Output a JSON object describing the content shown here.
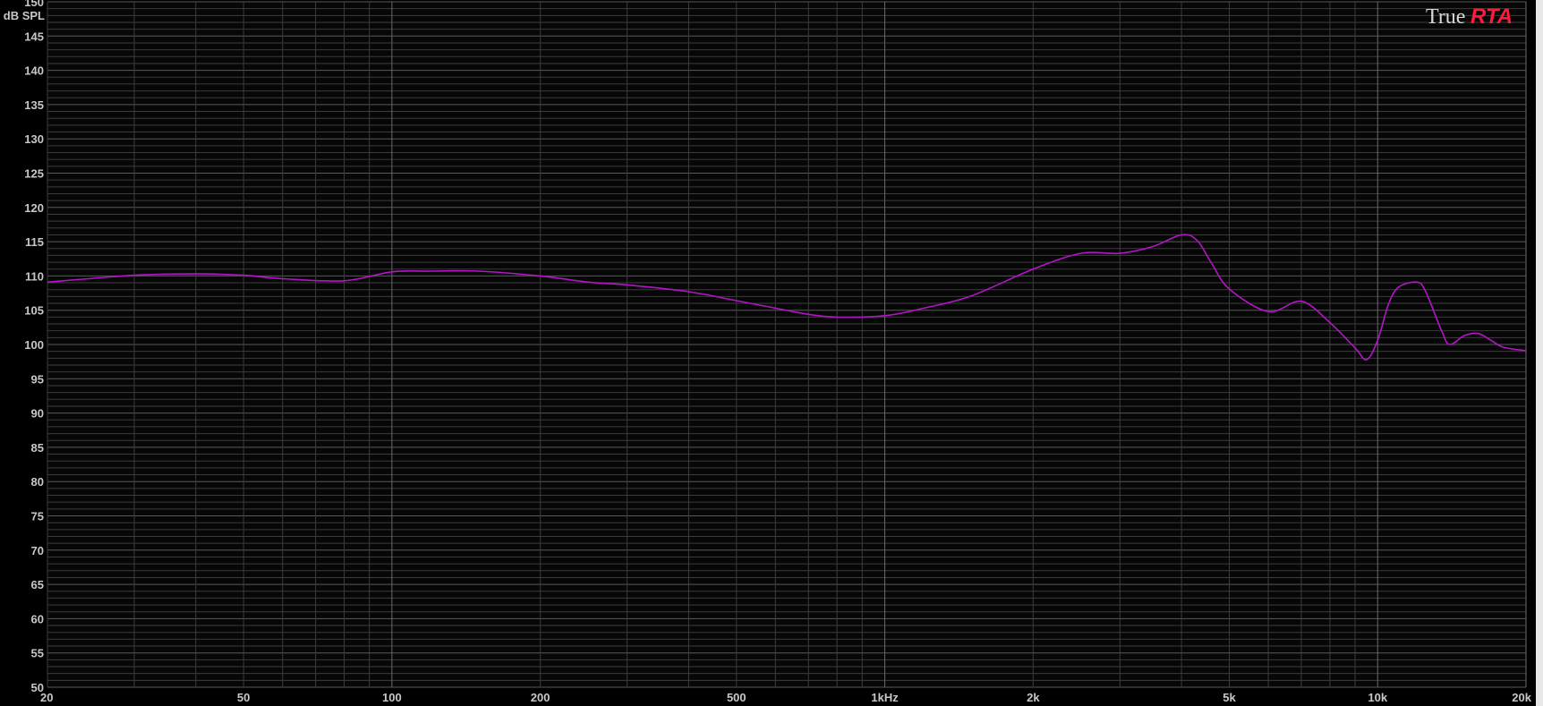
{
  "chart_data": {
    "type": "line",
    "ylabel": "dB SPL",
    "xscale": "log",
    "xlim": [
      20,
      20000
    ],
    "ylim": [
      50,
      150
    ],
    "grid": true,
    "x_ticks": [
      {
        "value": 20,
        "label": "20"
      },
      {
        "value": 50,
        "label": "50"
      },
      {
        "value": 100,
        "label": "100"
      },
      {
        "value": 200,
        "label": "200"
      },
      {
        "value": 500,
        "label": "500"
      },
      {
        "value": 1000,
        "label": "1kHz"
      },
      {
        "value": 2000,
        "label": "2k"
      },
      {
        "value": 5000,
        "label": "5k"
      },
      {
        "value": 10000,
        "label": "10k"
      },
      {
        "value": 20000,
        "label": "20k"
      }
    ],
    "y_ticks": [
      150,
      145,
      140,
      135,
      130,
      125,
      120,
      115,
      110,
      105,
      100,
      95,
      90,
      85,
      80,
      75,
      70,
      65,
      60,
      55,
      50
    ],
    "series": [
      {
        "color": "#b414c8",
        "x": [
          20,
          30,
          40,
          50,
          60,
          80,
          100,
          120,
          150,
          200,
          250,
          300,
          400,
          500,
          600,
          700,
          800,
          1000,
          1200,
          1500,
          2000,
          2500,
          3000,
          3500,
          4000,
          4300,
          4600,
          5000,
          6000,
          7000,
          8000,
          9000,
          9500,
          10000,
          10500,
          11000,
          12000,
          12500,
          13500,
          14000,
          15000,
          16000,
          17000,
          18000,
          20000
        ],
        "y": [
          109.1,
          110.1,
          110.3,
          110.1,
          109.6,
          109.3,
          110.6,
          110.7,
          110.7,
          110.0,
          109.1,
          108.7,
          107.7,
          106.4,
          105.3,
          104.4,
          104.0,
          104.2,
          105.3,
          107.1,
          111.0,
          113.3,
          113.3,
          114.3,
          116.0,
          115.2,
          111.9,
          108.1,
          104.8,
          106.3,
          103.2,
          99.5,
          97.8,
          100.6,
          105.7,
          108.3,
          109.1,
          107.8,
          101.9,
          100.0,
          101.3,
          101.6,
          100.6,
          99.6,
          99.1
        ]
      }
    ]
  },
  "logo": {
    "part1": "True",
    "part2": "RTA"
  },
  "colors": {
    "background": "#000000",
    "grid": "#3c3c3c",
    "grid_major": "#5a5a5a",
    "accent": "#ff1a3c"
  }
}
